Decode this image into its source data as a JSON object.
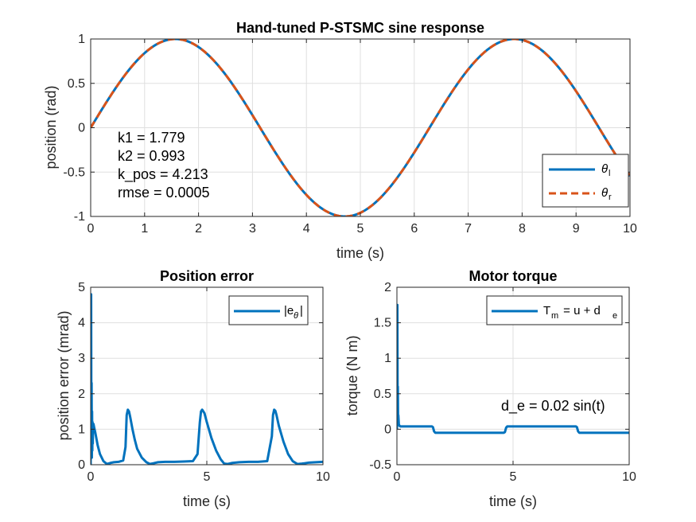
{
  "chart_data": [
    {
      "id": "sine",
      "type": "line",
      "title": "Hand-tuned P-STSMC sine response",
      "xlabel": "time (s)",
      "ylabel": "position (rad)",
      "xlim": [
        0,
        10
      ],
      "ylim": [
        -1,
        1
      ],
      "xticks": [
        "0",
        "1",
        "2",
        "3",
        "4",
        "5",
        "6",
        "7",
        "8",
        "9",
        "10"
      ],
      "yticks": [
        "-1",
        "-0.5",
        "0",
        "0.5",
        "1"
      ],
      "grid": true,
      "legend_position": "bottom-right",
      "series": [
        {
          "name": "θ",
          "subscript": "l",
          "style": "solid",
          "color": "#0072BD",
          "function": "sin(t)"
        },
        {
          "name": "θ",
          "subscript": "r",
          "style": "dashed",
          "color": "#D95319",
          "function": "sin(t)"
        }
      ],
      "annotations": [
        "k1 = 1.779",
        "k2 = 0.993",
        "k_pos = 4.213",
        "rmse = 0.0005"
      ]
    },
    {
      "id": "error",
      "type": "line",
      "title": "Position error",
      "xlabel": "time (s)",
      "ylabel": "position error (mrad)",
      "xlim": [
        0,
        10
      ],
      "ylim": [
        0,
        5
      ],
      "xticks": [
        "0",
        "5",
        "10"
      ],
      "yticks": [
        "0",
        "1",
        "2",
        "3",
        "4",
        "5"
      ],
      "grid": true,
      "legend_position": "top-right",
      "series": [
        {
          "name": "|e",
          "subscript": "θ",
          "suffix": "|",
          "color": "#0072BD",
          "x": [
            0,
            0.02,
            0.03,
            0.04,
            0.05,
            0.06,
            0.07,
            0.08,
            0.09,
            0.1,
            0.12,
            0.15,
            0.2,
            0.3,
            0.4,
            0.55,
            0.7,
            0.85,
            1.0,
            1.2,
            1.4,
            1.5,
            1.55,
            1.6,
            1.65,
            1.7,
            1.8,
            1.9,
            2.0,
            2.2,
            2.4,
            2.55,
            2.7,
            2.9,
            3.2,
            3.6,
            4.0,
            4.4,
            4.6,
            4.7,
            4.75,
            4.8,
            4.9,
            5.0,
            5.2,
            5.4,
            5.6,
            5.75,
            5.9,
            6.1,
            6.4,
            6.8,
            7.2,
            7.6,
            7.8,
            7.85,
            7.9,
            7.95,
            8.0,
            8.1,
            8.3,
            8.5,
            8.7,
            8.9,
            9.1,
            9.4,
            9.7,
            10.0
          ],
          "y": [
            0,
            4.8,
            0.3,
            2.3,
            0.2,
            1.5,
            0.4,
            1.2,
            0.6,
            1.0,
            1.15,
            1.05,
            0.9,
            0.55,
            0.3,
            0.1,
            0.02,
            0.05,
            0.07,
            0.08,
            0.12,
            0.5,
            1.4,
            1.55,
            1.5,
            1.35,
            1.0,
            0.7,
            0.45,
            0.2,
            0.07,
            0.02,
            0.04,
            0.07,
            0.08,
            0.08,
            0.09,
            0.1,
            0.3,
            1.2,
            1.5,
            1.55,
            1.45,
            1.2,
            0.75,
            0.4,
            0.15,
            0.03,
            0.02,
            0.05,
            0.07,
            0.08,
            0.08,
            0.1,
            0.8,
            1.4,
            1.55,
            1.52,
            1.4,
            1.1,
            0.65,
            0.3,
            0.1,
            0.02,
            0.03,
            0.06,
            0.07,
            0.08
          ]
        }
      ]
    },
    {
      "id": "torque",
      "type": "line",
      "title": "Motor torque",
      "xlabel": "time (s)",
      "ylabel": "torque (N m)",
      "xlim": [
        0,
        10
      ],
      "ylim": [
        -0.5,
        2
      ],
      "xticks": [
        "0",
        "5",
        "10"
      ],
      "yticks": [
        "-0.5",
        "0",
        "0.5",
        "1",
        "1.5",
        "2"
      ],
      "grid": true,
      "legend_position": "top-right",
      "series": [
        {
          "name": "T",
          "subscript": "m",
          "mid": " = u + d",
          "subscript2": "e",
          "color": "#0072BD",
          "x": [
            0,
            0.02,
            0.03,
            0.04,
            0.05,
            0.06,
            0.08,
            0.1,
            0.15,
            0.2,
            0.5,
            1.0,
            1.5,
            1.55,
            1.6,
            1.65,
            2.0,
            3.0,
            4.0,
            4.6,
            4.65,
            4.7,
            4.75,
            5.0,
            6.0,
            7.0,
            7.7,
            7.75,
            7.8,
            7.85,
            8.0,
            9.0,
            10.0
          ],
          "y": [
            0,
            1.75,
            0.3,
            0.6,
            0.15,
            0.2,
            0.08,
            0.05,
            0.04,
            0.04,
            0.04,
            0.04,
            0.04,
            0.03,
            -0.03,
            -0.05,
            -0.05,
            -0.05,
            -0.05,
            -0.05,
            -0.04,
            0.02,
            0.04,
            0.04,
            0.04,
            0.04,
            0.04,
            0.03,
            -0.03,
            -0.05,
            -0.05,
            -0.05,
            -0.05
          ]
        }
      ],
      "annotations": [
        "d_e = 0.02 sin(t)"
      ]
    }
  ]
}
